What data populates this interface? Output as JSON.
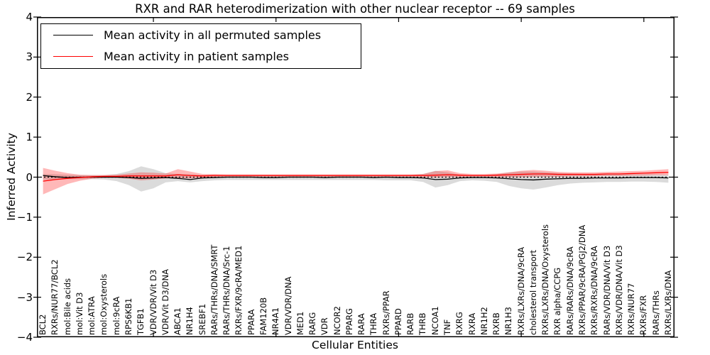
{
  "title": "RXR and RAR heterodimerization with other nuclear receptor -- 69 samples",
  "chart_data": {
    "type": "line",
    "title": "RXR and RAR heterodimerization with other nuclear receptor -- 69 samples",
    "xlabel": "Cellular Entities",
    "ylabel": "Inferred Activity",
    "ylim": [
      -4,
      4
    ],
    "yticks": [
      4,
      3,
      2,
      1,
      0,
      -1,
      -2,
      -3,
      -4
    ],
    "grid": false,
    "legend_position": "upper left",
    "zero_line": {
      "value": 0,
      "style": "dotted",
      "color": "#000000"
    },
    "categories": [
      "BCL2",
      "RXRs/NUR77/BCL2",
      "mol:Bile acids",
      "mol:Vit D3",
      "mol:ATRA",
      "mol:Oxysterols",
      "mol:9cRA",
      "RPS6KB1",
      "TGFB1",
      "VDR/VDR/Vit D3",
      "VDR/Vit D3/DNA",
      "ABCA1",
      "NR1H4",
      "SREBF1",
      "RARs/THRs/DNA/SMRT",
      "RARs/THRs/DNA/Src-1",
      "RXRs/FXR/9cRA/MED1",
      "PPARA",
      "FAM120B",
      "NR4A1",
      "VDR/VDR/DNA",
      "MED1",
      "RARG",
      "VDR",
      "NCOR2",
      "PPARG",
      "RARA",
      "THRA",
      "RXRs/PPAR",
      "PPARD",
      "RARB",
      "THRB",
      "NCOA1",
      "TNF",
      "RXRG",
      "RXRA",
      "NR1H2",
      "RXRB",
      "NR1H3",
      "RXRs/LXRs/DNA/9cRA",
      "cholesterol transport",
      "RXRs/LXRs/DNA/Oxysterols",
      "RXR alpha/CCPG",
      "RARs/RARs/DNA/9cRA",
      "RXRs/PPAR/9cRA/PGJ2/DNA",
      "RXRs/RXRs/DNA/9cRA",
      "RARs/VDR/DNA/Vit D3",
      "RXRs/VDR/DNA/Vit D3",
      "RXRs/NUR77",
      "RXRs/FXR",
      "RARs/THRs",
      "RXRs/LXRs/DNA"
    ],
    "series": [
      {
        "name": "Mean activity in all permuted samples",
        "color": "#000000",
        "values": [
          0.04,
          0.01,
          -0.01,
          0,
          0,
          0,
          0,
          -0.01,
          -0.03,
          -0.02,
          -0.01,
          -0.03,
          -0.06,
          -0.02,
          -0.01,
          0,
          0,
          0,
          -0.01,
          -0.01,
          0,
          0,
          0,
          -0.01,
          0,
          0,
          0,
          -0.01,
          0,
          -0.01,
          -0.01,
          -0.02,
          -0.06,
          -0.05,
          -0.02,
          -0.01,
          -0.01,
          -0.02,
          -0.04,
          -0.06,
          -0.07,
          -0.05,
          -0.04,
          -0.03,
          -0.03,
          -0.02,
          -0.02,
          -0.02,
          -0.01,
          -0.01,
          -0.01,
          -0.02
        ],
        "band": {
          "fill": "rgba(0,0,0,0.14)",
          "hi": [
            0.08,
            0.07,
            0.06,
            0.05,
            0.05,
            0.05,
            0.08,
            0.15,
            0.27,
            0.2,
            0.1,
            0.08,
            0.07,
            0.05,
            0.05,
            0.04,
            0.04,
            0.04,
            0.04,
            0.04,
            0.04,
            0.04,
            0.04,
            0.04,
            0.04,
            0.04,
            0.04,
            0.04,
            0.04,
            0.04,
            0.05,
            0.08,
            0.16,
            0.12,
            0.06,
            0.05,
            0.05,
            0.07,
            0.12,
            0.14,
            0.14,
            0.12,
            0.1,
            0.09,
            0.08,
            0.08,
            0.08,
            0.07,
            0.07,
            0.07,
            0.07,
            0.06
          ],
          "lo": [
            -0.06,
            -0.06,
            -0.05,
            -0.05,
            -0.05,
            -0.06,
            -0.1,
            -0.2,
            -0.36,
            -0.28,
            -0.13,
            -0.1,
            -0.13,
            -0.1,
            -0.08,
            -0.07,
            -0.07,
            -0.07,
            -0.07,
            -0.07,
            -0.07,
            -0.07,
            -0.07,
            -0.07,
            -0.07,
            -0.07,
            -0.07,
            -0.07,
            -0.08,
            -0.08,
            -0.08,
            -0.12,
            -0.26,
            -0.2,
            -0.1,
            -0.08,
            -0.09,
            -0.12,
            -0.22,
            -0.28,
            -0.31,
            -0.26,
            -0.2,
            -0.16,
            -0.14,
            -0.13,
            -0.12,
            -0.12,
            -0.11,
            -0.11,
            -0.12,
            -0.14
          ]
        }
      },
      {
        "name": "Mean activity in patient samples",
        "color": "#ff0000",
        "values": [
          -0.1,
          -0.06,
          -0.03,
          -0.01,
          0.01,
          0.02,
          0.02,
          0.03,
          0.03,
          0.03,
          0.03,
          0.06,
          0.04,
          0.03,
          0.04,
          0.04,
          0.04,
          0.04,
          0.04,
          0.04,
          0.04,
          0.04,
          0.04,
          0.04,
          0.04,
          0.04,
          0.04,
          0.04,
          0.04,
          0.04,
          0.04,
          0.04,
          0.05,
          0.06,
          0.05,
          0.04,
          0.04,
          0.05,
          0.06,
          0.07,
          0.08,
          0.08,
          0.07,
          0.07,
          0.07,
          0.07,
          0.08,
          0.08,
          0.09,
          0.1,
          0.11,
          0.12
        ],
        "band": {
          "fill": "rgba(255,0,0,0.28)",
          "hi": [
            0.23,
            0.16,
            0.1,
            0.06,
            0.05,
            0.05,
            0.06,
            0.09,
            0.12,
            0.11,
            0.09,
            0.2,
            0.14,
            0.08,
            0.08,
            0.07,
            0.07,
            0.07,
            0.07,
            0.07,
            0.07,
            0.07,
            0.07,
            0.07,
            0.07,
            0.07,
            0.07,
            0.07,
            0.07,
            0.07,
            0.07,
            0.08,
            0.15,
            0.17,
            0.1,
            0.08,
            0.08,
            0.09,
            0.12,
            0.16,
            0.18,
            0.16,
            0.13,
            0.12,
            0.12,
            0.12,
            0.13,
            0.14,
            0.15,
            0.16,
            0.18,
            0.2
          ],
          "lo": [
            -0.43,
            -0.3,
            -0.17,
            -0.09,
            -0.04,
            -0.02,
            -0.02,
            -0.04,
            -0.08,
            -0.06,
            -0.03,
            -0.02,
            -0.03,
            -0.01,
            0.0,
            0.01,
            0.01,
            0.01,
            0.01,
            0.01,
            0.01,
            0.01,
            0.01,
            0.01,
            0.01,
            0.01,
            0.01,
            0.01,
            0.01,
            0.01,
            0.01,
            0.0,
            -0.01,
            0.0,
            0.0,
            0.01,
            0.01,
            0.0,
            0.0,
            0.0,
            0.01,
            0.01,
            0.01,
            0.02,
            0.02,
            0.02,
            0.03,
            0.03,
            0.04,
            0.04,
            0.05,
            0.05
          ]
        }
      }
    ],
    "x_major_tick_indices": [
      9,
      19,
      29,
      39,
      49
    ]
  },
  "colors": {
    "frame": "#000000",
    "background": "#ffffff",
    "permuted_line": "#000000",
    "patient_line": "#ff0000",
    "permuted_band": "rgba(0,0,0,0.14)",
    "patient_band": "rgba(255,0,0,0.28)"
  }
}
